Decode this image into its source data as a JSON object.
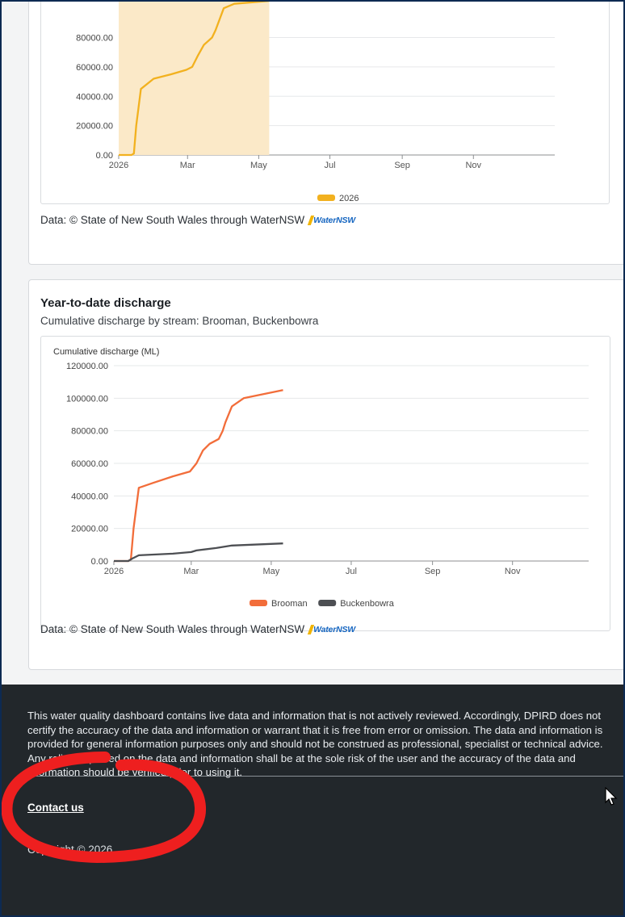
{
  "chart1": {
    "attribution": "Data: © State of New South Wales through WaterNSW",
    "logo_text": "WaterNSW",
    "chart_data": {
      "type": "area",
      "x_tick_labels": [
        "2026",
        "Mar",
        "May",
        "Jul",
        "Sep",
        "Nov"
      ],
      "y_tick_labels": [
        "0.00",
        "20000.00",
        "40000.00",
        "60000.00",
        "80000.00"
      ],
      "ylim": [
        0,
        110000
      ],
      "legend": "bottom",
      "series": [
        {
          "name": "2026",
          "color": "#f2b11f",
          "fill": "#fbe9c8",
          "x": [
            "2026-01-01",
            "2026-01-12",
            "2026-01-14",
            "2026-01-16",
            "2026-01-20",
            "2026-01-31",
            "2026-02-15",
            "2026-02-28",
            "2026-03-05",
            "2026-03-10",
            "2026-03-15",
            "2026-03-22",
            "2026-03-25",
            "2026-04-01",
            "2026-04-10",
            "2026-05-10"
          ],
          "values": [
            0,
            0,
            1000,
            20000,
            45000,
            52000,
            55000,
            58000,
            60000,
            68000,
            75000,
            80000,
            85000,
            100000,
            103000,
            105000
          ]
        }
      ]
    }
  },
  "chart2": {
    "title": "Year-to-date discharge",
    "subtitle": "Cumulative discharge by stream: Brooman, Buckenbowra",
    "attribution": "Data: © State of New South Wales through WaterNSW",
    "logo_text": "WaterNSW",
    "chart_data": {
      "type": "line",
      "ylabel": "Cumulative discharge (ML)",
      "x_tick_labels": [
        "2026",
        "Mar",
        "May",
        "Jul",
        "Sep",
        "Nov"
      ],
      "y_tick_labels": [
        "0.00",
        "20000.00",
        "40000.00",
        "60000.00",
        "80000.00",
        "100000.00",
        "120000.00"
      ],
      "ylim": [
        0,
        120000
      ],
      "legend": "bottom",
      "series": [
        {
          "name": "Brooman",
          "color": "#f26d3a",
          "x": [
            "2026-01-01",
            "2026-01-12",
            "2026-01-14",
            "2026-01-16",
            "2026-01-20",
            "2026-01-31",
            "2026-02-15",
            "2026-02-28",
            "2026-03-05",
            "2026-03-10",
            "2026-03-15",
            "2026-03-22",
            "2026-03-25",
            "2026-03-27",
            "2026-04-01",
            "2026-04-10",
            "2026-05-10"
          ],
          "values": [
            0,
            0,
            1000,
            20000,
            45000,
            48000,
            52000,
            55000,
            60000,
            68000,
            72000,
            75000,
            80000,
            85000,
            95000,
            100000,
            105000
          ]
        },
        {
          "name": "Buckenbowra",
          "color": "#4d4f53",
          "x": [
            "2026-01-01",
            "2026-01-12",
            "2026-01-15",
            "2026-01-20",
            "2026-02-15",
            "2026-03-01",
            "2026-03-05",
            "2026-03-20",
            "2026-04-01",
            "2026-05-10"
          ],
          "values": [
            0,
            0,
            1500,
            3500,
            4500,
            5500,
            6500,
            8000,
            9500,
            10800
          ]
        }
      ]
    }
  },
  "footer": {
    "disclaimer": "This water quality dashboard contains live data and information that is not actively reviewed. Accordingly, DPIRD does not certify the accuracy of the data and information or warrant that it is free from error or omission. The data and information is provided for general information purposes only and should not be construed as professional, specialist or technical advice. Any reliance placed on the data and information shall be at the sole risk of the user and the accuracy of the data and information should be verified prior to using it.",
    "contact_label": "Contact us",
    "copyright": "Copyright © 2026"
  },
  "colors": {
    "footer_bg": "#22272b",
    "annotation_red": "#ee1f1f"
  }
}
